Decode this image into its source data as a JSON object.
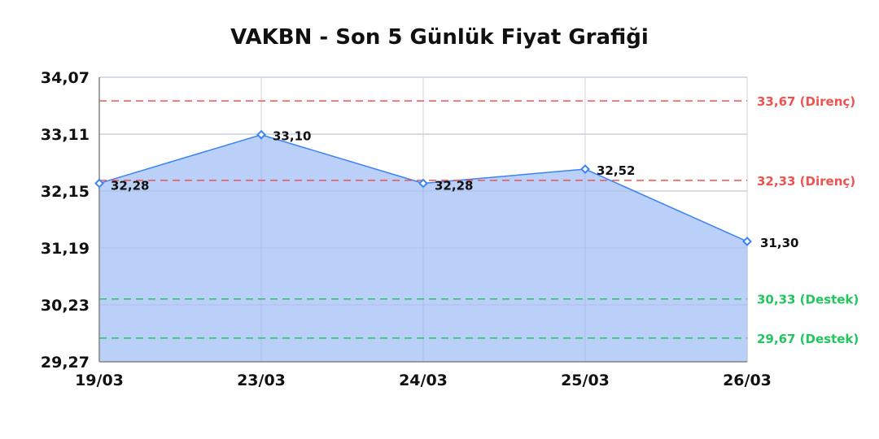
{
  "chart_data": {
    "type": "area",
    "title": "VAKBN - Son 5 Günlük Fiyat Grafiği",
    "xlabel": "",
    "ylabel": "",
    "categories": [
      "19/03",
      "23/03",
      "24/03",
      "25/03",
      "26/03"
    ],
    "values": [
      32.28,
      33.1,
      32.28,
      32.52,
      31.3
    ],
    "data_labels": [
      "32,28",
      "33,10",
      "32,28",
      "32,52",
      "31,30"
    ],
    "ylim": [
      29.27,
      34.07
    ],
    "y_ticks": [
      34.07,
      33.11,
      32.15,
      31.19,
      30.23,
      29.27
    ],
    "y_tick_labels": [
      "34,07",
      "33,11",
      "32,15",
      "31,19",
      "30,23",
      "29,27"
    ],
    "grid": true,
    "series_color": "#3b82f6",
    "fill_color": "#b6cef8",
    "reference_lines": [
      {
        "value": 33.67,
        "label": "33,67 (Direnç)",
        "color": "#ef5350"
      },
      {
        "value": 32.33,
        "label": "32,33 (Direnç)",
        "color": "#ef5350"
      },
      {
        "value": 30.33,
        "label": "30,33 (Destek)",
        "color": "#22c55e"
      },
      {
        "value": 29.67,
        "label": "29,67 (Destek)",
        "color": "#22c55e"
      }
    ]
  }
}
